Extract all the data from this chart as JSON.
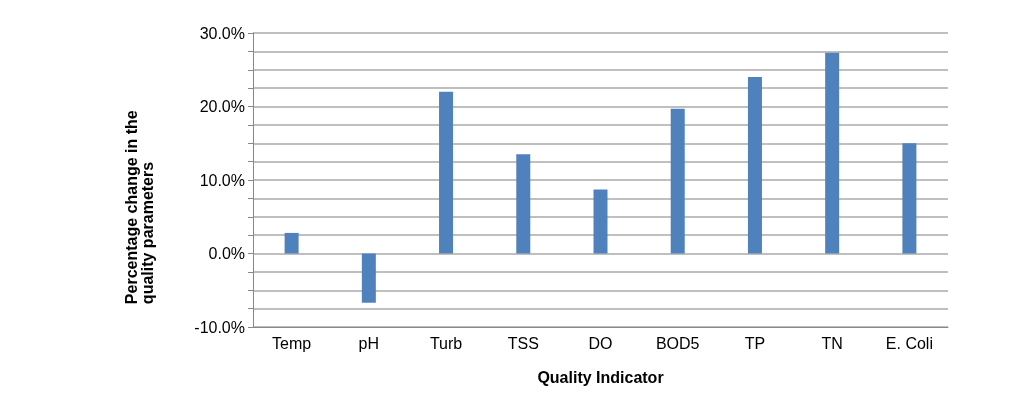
{
  "chart_data": {
    "type": "bar",
    "xlabel": "Quality Indicator",
    "ylabel": "Percentage change in the quality parameters",
    "categories": [
      "Temp",
      "pH",
      "Turb",
      "TSS",
      "DO",
      "BOD5",
      "TP",
      "TN",
      "E. Coli"
    ],
    "values": [
      2.8,
      -6.7,
      22.0,
      13.5,
      8.7,
      19.7,
      24.0,
      27.3,
      15.0
    ],
    "color": "#4f81bd",
    "ylim": [
      -10,
      30
    ],
    "yticks": [
      {
        "value": -10,
        "label": "-10.0%"
      },
      {
        "value": -7.5,
        "label": null
      },
      {
        "value": -5,
        "label": null
      },
      {
        "value": -2.5,
        "label": null
      },
      {
        "value": 0,
        "label": "0.0%"
      },
      {
        "value": 2.5,
        "label": null
      },
      {
        "value": 5,
        "label": null
      },
      {
        "value": 7.5,
        "label": null
      },
      {
        "value": 10,
        "label": "10.0%"
      },
      {
        "value": 12.5,
        "label": null
      },
      {
        "value": 15,
        "label": null
      },
      {
        "value": 17.5,
        "label": null
      },
      {
        "value": 20,
        "label": "20.0%"
      },
      {
        "value": 22.5,
        "label": null
      },
      {
        "value": 25,
        "label": null
      },
      {
        "value": 27.5,
        "label": null
      },
      {
        "value": 30,
        "label": "30.0%"
      }
    ],
    "grid": "y"
  }
}
